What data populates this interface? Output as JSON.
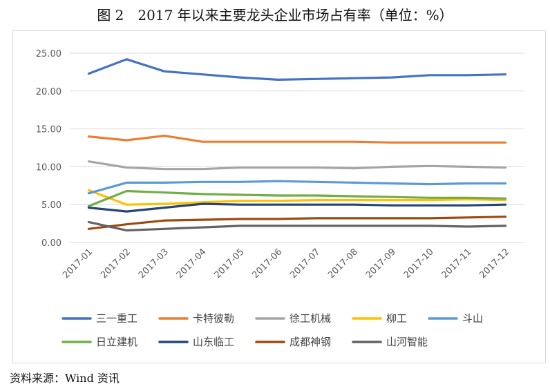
{
  "title": "图 2　2017 年以来主要龙头企业市场占有率（单位：%）",
  "source": "资料来源：Wind 资讯",
  "chart_data": {
    "type": "line",
    "x": [
      "2017-01",
      "2017-02",
      "2017-03",
      "2017-04",
      "2017-05",
      "2017-06",
      "2017-07",
      "2017-08",
      "2017-09",
      "2017-10",
      "2017-11",
      "2017-12"
    ],
    "ylim": [
      0,
      25
    ],
    "yticks": [
      "0.00",
      "5.00",
      "10.00",
      "15.00",
      "20.00",
      "25.00"
    ],
    "grid": "horizontal",
    "legend_position": "bottom",
    "series": [
      {
        "name": "三一重工",
        "color": "#4472c4",
        "values": [
          22.3,
          24.2,
          22.6,
          22.2,
          21.8,
          21.5,
          21.6,
          21.7,
          21.8,
          22.1,
          22.1,
          22.2
        ]
      },
      {
        "name": "卡特彼勒",
        "color": "#ed7d31",
        "values": [
          14.0,
          13.5,
          14.1,
          13.3,
          13.3,
          13.3,
          13.3,
          13.3,
          13.2,
          13.2,
          13.2,
          13.2
        ]
      },
      {
        "name": "徐工机械",
        "color": "#a5a5a5",
        "values": [
          10.7,
          9.9,
          9.7,
          9.7,
          9.9,
          9.9,
          9.9,
          9.8,
          10.0,
          10.1,
          10.0,
          9.9
        ]
      },
      {
        "name": "柳工",
        "color": "#ffc000",
        "values": [
          6.9,
          5.0,
          5.1,
          5.3,
          5.5,
          5.5,
          5.6,
          5.6,
          5.6,
          5.6,
          5.7,
          5.6
        ]
      },
      {
        "name": "斗山",
        "color": "#5b9bd5",
        "values": [
          6.5,
          7.9,
          7.9,
          8.0,
          8.0,
          8.1,
          8.0,
          7.9,
          7.8,
          7.7,
          7.8,
          7.8
        ]
      },
      {
        "name": "日立建机",
        "color": "#70ad47",
        "values": [
          4.8,
          6.8,
          6.6,
          6.4,
          6.3,
          6.2,
          6.2,
          6.1,
          6.0,
          5.9,
          5.9,
          5.8
        ]
      },
      {
        "name": "山东临工",
        "color": "#264478",
        "values": [
          4.6,
          4.1,
          4.6,
          5.1,
          5.0,
          5.0,
          5.0,
          5.0,
          4.9,
          4.9,
          4.9,
          5.0
        ]
      },
      {
        "name": "成都神钢",
        "color": "#9e480e",
        "values": [
          1.8,
          2.4,
          2.9,
          3.0,
          3.1,
          3.1,
          3.2,
          3.2,
          3.2,
          3.2,
          3.3,
          3.4
        ]
      },
      {
        "name": "山河智能",
        "color": "#636363",
        "values": [
          2.7,
          1.6,
          1.8,
          2.0,
          2.2,
          2.2,
          2.2,
          2.2,
          2.2,
          2.2,
          2.1,
          2.2
        ]
      }
    ]
  }
}
